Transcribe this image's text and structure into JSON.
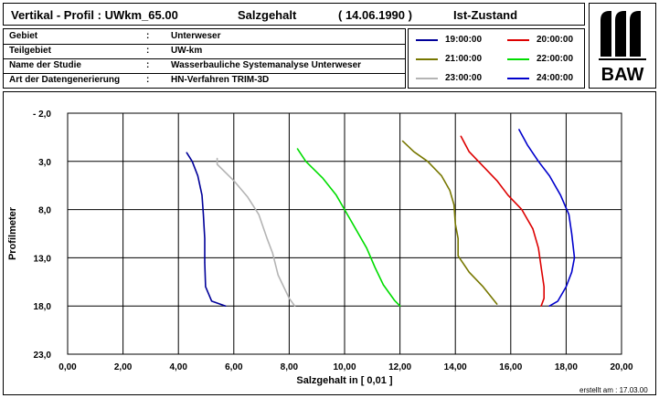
{
  "header": {
    "title": "Vertikal - Profil  :  UWkm_65.00",
    "parameter": "Salzgehalt",
    "date": "( 14.06.1990 )",
    "state": "Ist-Zustand"
  },
  "info": [
    {
      "key": "Gebiet",
      "sep": ":",
      "value": "Unterweser"
    },
    {
      "key": "Teilgebiet",
      "sep": ":",
      "value": "UW-km"
    },
    {
      "key": "Name der Studie",
      "sep": ":",
      "value": "Wasserbauliche Systemanalyse Unterweser"
    },
    {
      "key": "Art der Datengenerierung",
      "sep": ":",
      "value": "HN-Verfahren TRIM-3D"
    }
  ],
  "logo": {
    "text": "BAW"
  },
  "footer": {
    "created": "erstellt am :  17.03.00"
  },
  "chart_data": {
    "type": "line",
    "title": "",
    "xlabel": "Salzgehalt  in  [ 0,01 ]",
    "ylabel": "Profilmeter",
    "xlim": [
      0,
      20
    ],
    "ylim": [
      -2,
      23
    ],
    "y_inverted": true,
    "xticks": [
      "0,00",
      "2,00",
      "4,00",
      "6,00",
      "8,00",
      "10,00",
      "12,00",
      "14,00",
      "16,00",
      "18,00",
      "20,00"
    ],
    "xtick_values": [
      0,
      2,
      4,
      6,
      8,
      10,
      12,
      14,
      16,
      18,
      20
    ],
    "yticks": [
      "- 2,0",
      "3,0",
      "8,0",
      "13,0",
      "18,0",
      "23,0"
    ],
    "ytick_values": [
      -2,
      3,
      8,
      13,
      18,
      23
    ],
    "grid": true,
    "legend": "top-right",
    "series": [
      {
        "name": "19:00:00",
        "color": "#000099",
        "points": [
          [
            4.3,
            2.1
          ],
          [
            4.5,
            3.0
          ],
          [
            4.7,
            4.5
          ],
          [
            4.85,
            6.5
          ],
          [
            4.9,
            8.5
          ],
          [
            4.95,
            11.0
          ],
          [
            4.95,
            13.5
          ],
          [
            4.98,
            16.0
          ],
          [
            5.2,
            17.5
          ],
          [
            5.7,
            18.0
          ]
        ]
      },
      {
        "name": "20:00:00",
        "color": "#dd0000",
        "points": [
          [
            14.2,
            0.4
          ],
          [
            14.5,
            2.0
          ],
          [
            15.0,
            3.5
          ],
          [
            15.5,
            5.0
          ],
          [
            15.9,
            6.5
          ],
          [
            16.4,
            8.0
          ],
          [
            16.8,
            10.0
          ],
          [
            17.0,
            12.0
          ],
          [
            17.1,
            14.0
          ],
          [
            17.2,
            16.0
          ],
          [
            17.2,
            17.2
          ],
          [
            17.1,
            18.0
          ]
        ]
      },
      {
        "name": "21:00:00",
        "color": "#777700",
        "points": [
          [
            12.1,
            0.9
          ],
          [
            12.5,
            2.0
          ],
          [
            13.0,
            3.0
          ],
          [
            13.5,
            4.5
          ],
          [
            13.8,
            6.0
          ],
          [
            13.95,
            7.5
          ],
          [
            14.0,
            9.5
          ],
          [
            14.1,
            11.0
          ],
          [
            14.1,
            12.8
          ],
          [
            14.5,
            14.5
          ],
          [
            15.0,
            16.0
          ],
          [
            15.5,
            17.8
          ]
        ]
      },
      {
        "name": "22:00:00",
        "color": "#00dd00",
        "points": [
          [
            8.3,
            1.7
          ],
          [
            8.6,
            3.0
          ],
          [
            9.2,
            4.7
          ],
          [
            9.7,
            6.5
          ],
          [
            10.0,
            8.0
          ],
          [
            10.4,
            10.0
          ],
          [
            10.8,
            12.0
          ],
          [
            11.1,
            14.0
          ],
          [
            11.4,
            15.8
          ],
          [
            11.8,
            17.4
          ],
          [
            12.0,
            18.0
          ]
        ]
      },
      {
        "name": "23:00:00",
        "color": "#b4b4b4",
        "points": [
          [
            5.4,
            2.7
          ],
          [
            5.4,
            3.3
          ],
          [
            6.0,
            5.0
          ],
          [
            6.5,
            6.7
          ],
          [
            6.9,
            8.5
          ],
          [
            7.2,
            11.0
          ],
          [
            7.4,
            12.5
          ],
          [
            7.6,
            14.8
          ],
          [
            8.0,
            17.2
          ],
          [
            8.2,
            18.0
          ]
        ]
      },
      {
        "name": "24:00:00",
        "color": "#0000cc",
        "points": [
          [
            16.3,
            -0.3
          ],
          [
            16.6,
            1.3
          ],
          [
            17.0,
            3.0
          ],
          [
            17.4,
            4.5
          ],
          [
            17.8,
            6.5
          ],
          [
            18.1,
            8.5
          ],
          [
            18.2,
            10.5
          ],
          [
            18.3,
            13.0
          ],
          [
            18.2,
            14.5
          ],
          [
            18.0,
            16.0
          ],
          [
            17.7,
            17.5
          ],
          [
            17.4,
            18.0
          ]
        ]
      }
    ]
  }
}
